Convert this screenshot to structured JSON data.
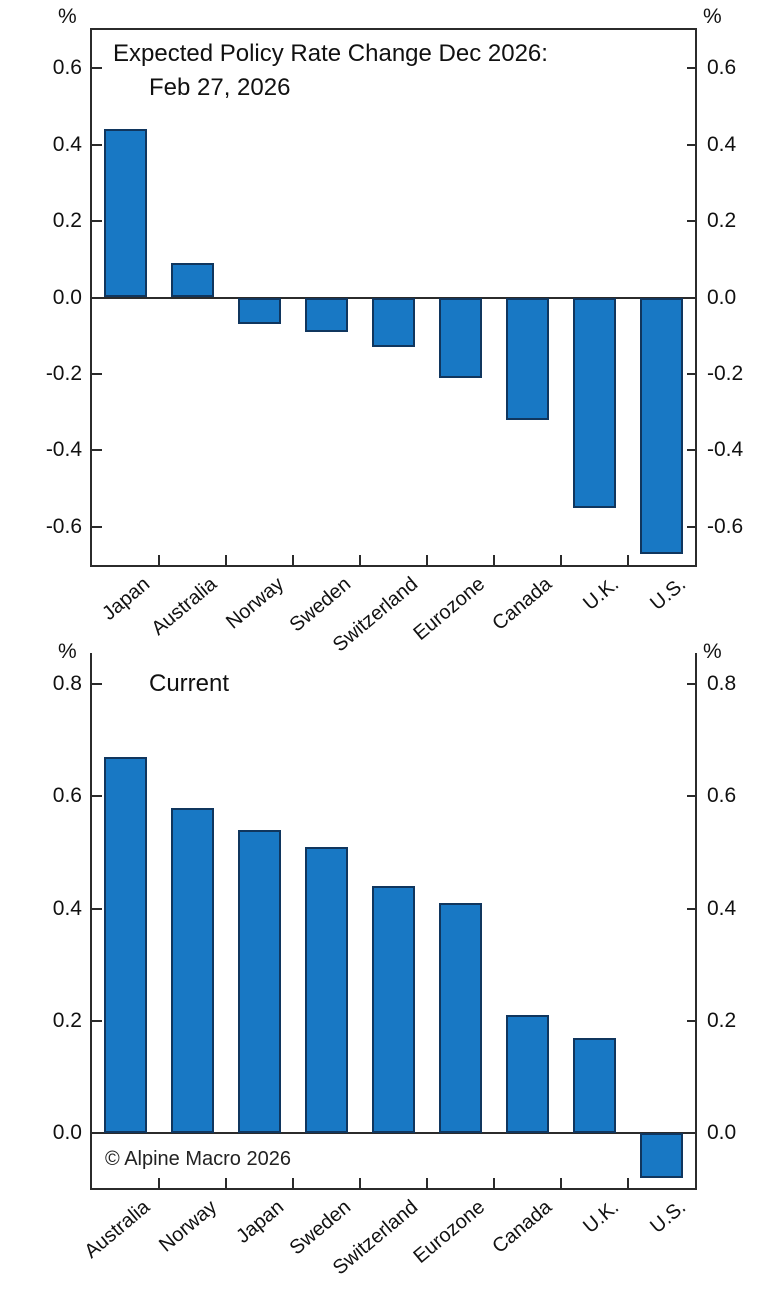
{
  "colors": {
    "bar_fill": "#1878c4",
    "bar_border": "#10365e",
    "axis": "#2b2b2b",
    "text": "#111111",
    "background": "#ffffff"
  },
  "footer": {
    "copyright": "© Alpine Macro 2026"
  },
  "chart_data": [
    {
      "type": "bar",
      "title": "Expected Policy Rate Change Dec 2026: Feb 27, 2026",
      "title_lines": [
        "Expected Policy Rate Change Dec 2026:",
        "Feb 27, 2026"
      ],
      "ylabel_left": "%",
      "ylabel_right": "%",
      "xlabel": "",
      "categories": [
        "Japan",
        "Australia",
        "Norway",
        "Sweden",
        "Switzerland",
        "Eurozone",
        "Canada",
        "U.K.",
        "U.S."
      ],
      "values": [
        0.44,
        0.09,
        -0.07,
        -0.09,
        -0.13,
        -0.21,
        -0.32,
        -0.55,
        -0.67
      ],
      "yticks": [
        0.6,
        0.4,
        0.2,
        0.0,
        -0.2,
        -0.4,
        -0.6
      ],
      "ylim": [
        -0.7,
        0.7
      ],
      "grid": false,
      "legend": false,
      "bar_color": "#1878c4"
    },
    {
      "type": "bar",
      "title": "Current",
      "title_lines": [
        "Current"
      ],
      "ylabel_left": "%",
      "ylabel_right": "%",
      "xlabel": "",
      "annotation": "© Alpine Macro 2026",
      "categories": [
        "Australia",
        "Norway",
        "Japan",
        "Sweden",
        "Switzerland",
        "Eurozone",
        "Canada",
        "U.K.",
        "U.S."
      ],
      "values": [
        0.67,
        0.58,
        0.54,
        0.51,
        0.44,
        0.41,
        0.21,
        0.17,
        -0.08
      ],
      "yticks": [
        0.8,
        0.6,
        0.4,
        0.2,
        0.0
      ],
      "ylim": [
        -0.098,
        0.852
      ],
      "grid": false,
      "legend": false,
      "bar_color": "#1878c4"
    }
  ]
}
